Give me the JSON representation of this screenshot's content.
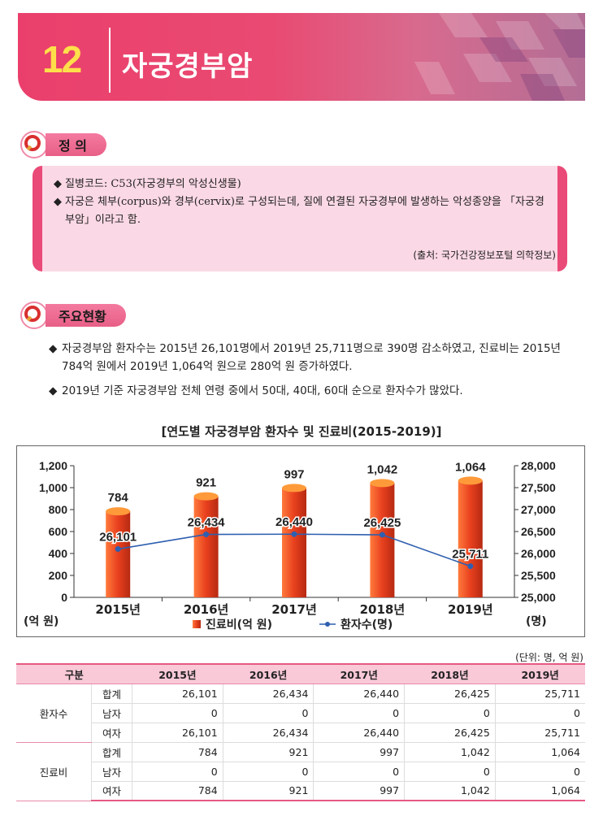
{
  "banner": {
    "number": "12",
    "title": "자궁경부암"
  },
  "definition": {
    "heading": "정 의",
    "lines": [
      "질병코드: C53(자궁경부의 악성신생물)",
      "자궁은 체부(corpus)와 경부(cervix)로 구성되는데, 질에 연결된 자궁경부에 발생하는 악성종양을 「자궁경부암」이라고 함."
    ],
    "source": "(출처: 국가건강정보포털 의학정보)"
  },
  "status": {
    "heading": "주요현황",
    "lines": [
      "자궁경부암 환자수는 2015년 26,101명에서 2019년 25,711명으로 390명 감소하였고, 진료비는 2015년 784억 원에서 2019년 1,064억 원으로 280억 원 증가하였다.",
      "2019년 기준 자궁경부암 전체 연령 중에서 50대, 40대, 60대 순으로 환자수가 많았다."
    ]
  },
  "chart_data": {
    "type": "bar",
    "title": "[연도별 자궁경부암 환자수 및 진료비(2015-2019)]",
    "categories": [
      "2015년",
      "2016년",
      "2017년",
      "2018년",
      "2019년"
    ],
    "series": [
      {
        "name": "진료비(억 원)",
        "type": "bar",
        "axis": "left",
        "values": [
          784,
          921,
          997,
          1042,
          1064
        ],
        "labels": [
          "784",
          "921",
          "997",
          "1,042",
          "1,064"
        ]
      },
      {
        "name": "환자수(명)",
        "type": "line",
        "axis": "right",
        "values": [
          26101,
          26434,
          26440,
          26425,
          25711
        ],
        "labels": [
          "26,101",
          "26,434",
          "26,440",
          "26,425",
          "25,711"
        ]
      }
    ],
    "left_axis": {
      "label": "(억 원)",
      "ylim": [
        0,
        1200
      ],
      "ticks": [
        "0",
        "200",
        "400",
        "600",
        "800",
        "1,000",
        "1,200"
      ]
    },
    "right_axis": {
      "label": "(명)",
      "ylim": [
        25000,
        28000
      ],
      "ticks": [
        "25,000",
        "25,500",
        "26,000",
        "26,500",
        "27,000",
        "27,500",
        "28,000"
      ]
    },
    "legend_position": "bottom",
    "grid": false,
    "colors": {
      "bar": "#e8401e",
      "line": "#2f5fb0"
    }
  },
  "table": {
    "unit": "(단위: 명, 억 원)",
    "header": [
      "구분",
      "2015년",
      "2016년",
      "2017년",
      "2018년",
      "2019년"
    ],
    "groups": [
      {
        "name": "환자수",
        "rows": [
          {
            "label": "합계",
            "values": [
              "26,101",
              "26,434",
              "26,440",
              "26,425",
              "25,711"
            ]
          },
          {
            "label": "남자",
            "values": [
              "0",
              "0",
              "0",
              "0",
              "0"
            ]
          },
          {
            "label": "여자",
            "values": [
              "26,101",
              "26,434",
              "26,440",
              "26,425",
              "25,711"
            ]
          }
        ]
      },
      {
        "name": "진료비",
        "rows": [
          {
            "label": "합계",
            "values": [
              "784",
              "921",
              "997",
              "1,042",
              "1,064"
            ]
          },
          {
            "label": "남자",
            "values": [
              "0",
              "0",
              "0",
              "0",
              "0"
            ]
          },
          {
            "label": "여자",
            "values": [
              "784",
              "921",
              "997",
              "1,042",
              "1,064"
            ]
          }
        ]
      }
    ]
  }
}
